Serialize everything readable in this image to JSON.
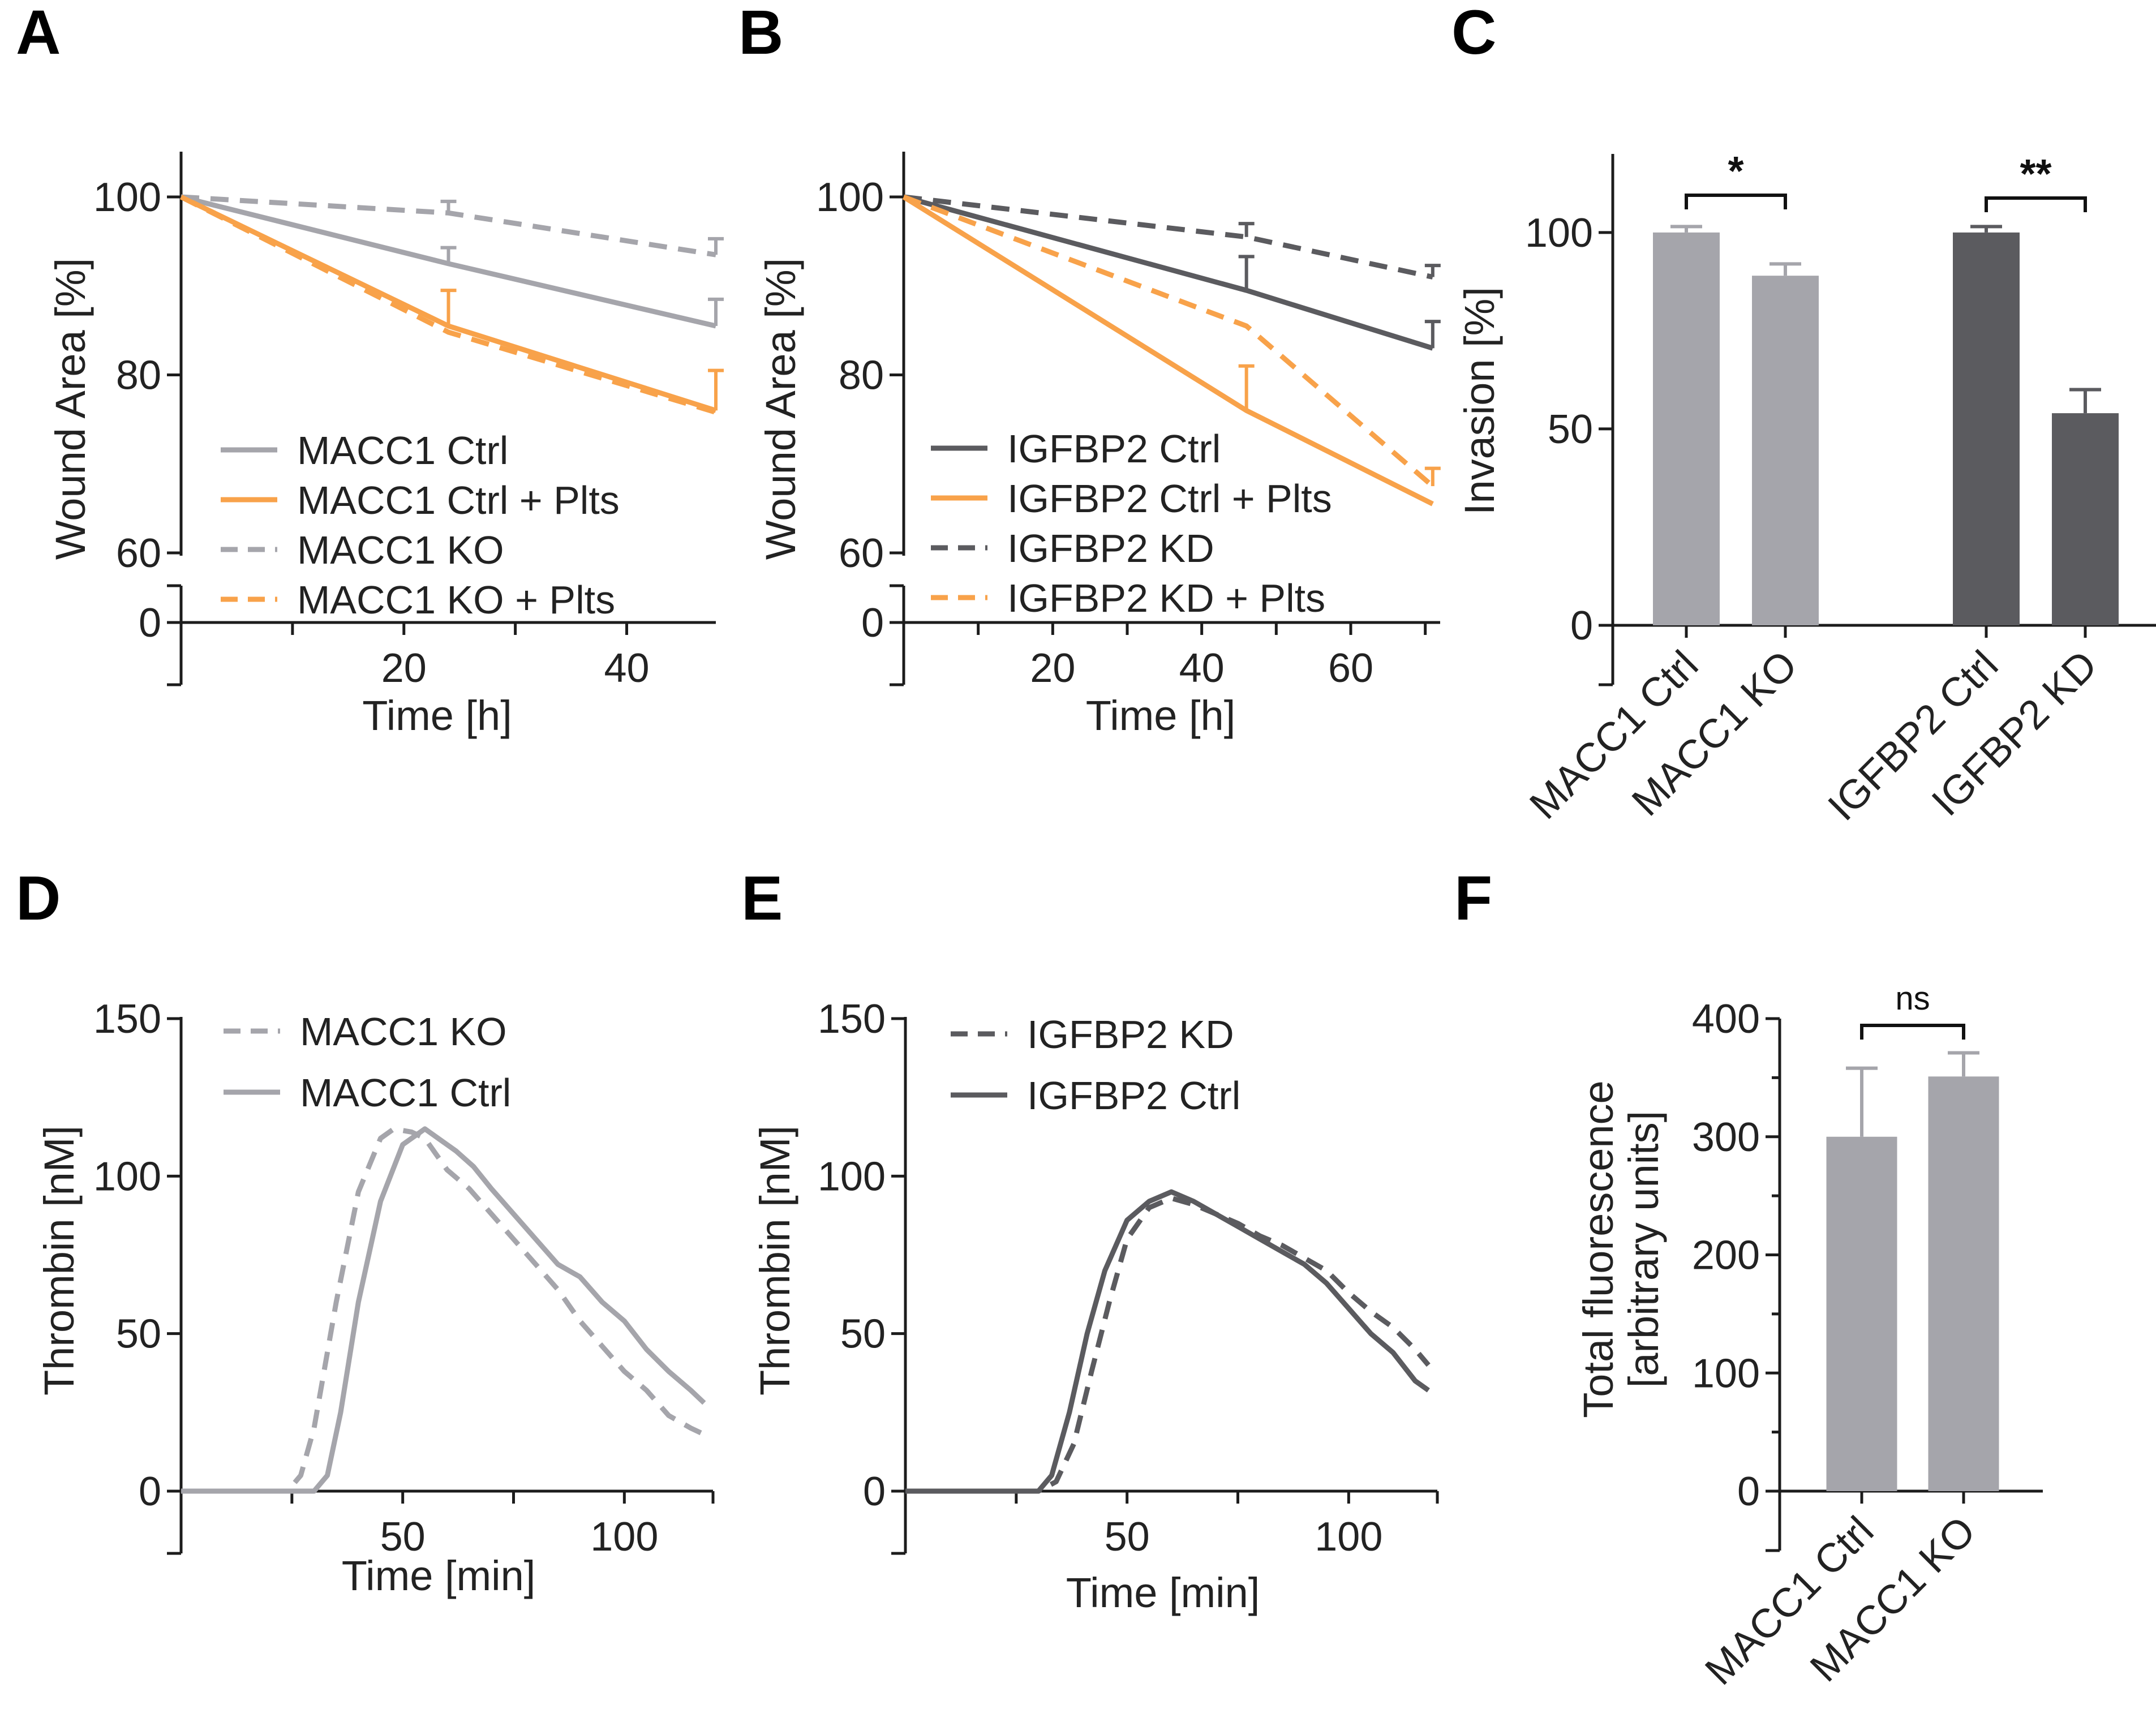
{
  "figure": {
    "colors": {
      "macc1": "#a5a5ab",
      "igfbp2": "#5b5b5f",
      "plts": "#f8a24a",
      "axis": "#1c1c1c"
    },
    "panel_letters": [
      "A",
      "B",
      "C",
      "D",
      "E",
      "F"
    ]
  },
  "chart_data": [
    {
      "panel": "A",
      "type": "line",
      "xlabel": "Time [h]",
      "ylabel": "Wound  Area [%]",
      "xlim": [
        0,
        48
      ],
      "ylim": [
        60,
        100
      ],
      "broken_axis_zero": true,
      "xticks": [
        20,
        40
      ],
      "yticks": [
        60,
        80,
        100
      ],
      "legend_position": "lower-left inside",
      "series": [
        {
          "name": "MACC1 Ctrl",
          "style": "solid",
          "color_key": "macc1",
          "x": [
            0,
            24,
            48
          ],
          "y": [
            100,
            92.5,
            85.5
          ],
          "err": [
            0,
            1.8,
            3
          ]
        },
        {
          "name": "MACC1 Ctrl + Plts",
          "style": "solid",
          "color_key": "plts",
          "x": [
            0,
            24,
            48
          ],
          "y": [
            100,
            85.5,
            76
          ],
          "err": [
            0,
            4,
            4.5
          ]
        },
        {
          "name": "MACC1 KO",
          "style": "dashed",
          "color_key": "macc1",
          "x": [
            0,
            24,
            48
          ],
          "y": [
            100,
            98.2,
            93.5
          ],
          "err": [
            0,
            1.3,
            1.8
          ]
        },
        {
          "name": "MACC1 KO + Plts",
          "style": "dashed",
          "color_key": "plts",
          "x": [
            0,
            24,
            48
          ],
          "y": [
            100,
            84.8,
            75.8
          ],
          "err": [
            0,
            0,
            0
          ]
        }
      ]
    },
    {
      "panel": "B",
      "type": "line",
      "xlabel": "Time [h]",
      "ylabel": "Wound  Area [%]",
      "xlim": [
        0,
        72
      ],
      "ylim": [
        60,
        100
      ],
      "broken_axis_zero": true,
      "xticks": [
        20,
        40,
        60
      ],
      "yticks": [
        60,
        80,
        100
      ],
      "legend_position": "lower-left inside",
      "series": [
        {
          "name": "IGFBP2 Ctrl",
          "style": "solid",
          "color_key": "igfbp2",
          "x": [
            0,
            46,
            71
          ],
          "y": [
            100,
            89.5,
            83
          ],
          "err": [
            0,
            3.8,
            3
          ]
        },
        {
          "name": "IGFBP2 Ctrl + Plts",
          "style": "solid",
          "color_key": "plts",
          "x": [
            0,
            46,
            71
          ],
          "y": [
            100,
            76,
            65.5
          ],
          "err": [
            0,
            5,
            0
          ]
        },
        {
          "name": "IGFBP2 KD",
          "style": "dashed",
          "color_key": "igfbp2",
          "x": [
            0,
            46,
            71
          ],
          "y": [
            100,
            95.5,
            91
          ],
          "err": [
            0,
            1.5,
            1.3
          ]
        },
        {
          "name": "IGFBP2 KD + Plts",
          "style": "dashed",
          "color_key": "plts",
          "x": [
            0,
            46,
            71
          ],
          "y": [
            100,
            85.5,
            67.5
          ],
          "err": [
            0,
            0,
            2
          ]
        }
      ]
    },
    {
      "panel": "C",
      "type": "bar",
      "ylabel": "Invasion [%]",
      "ylim": [
        0,
        120
      ],
      "yticks": [
        0,
        50,
        100
      ],
      "categories": [
        "MACC1 Ctrl",
        "MACC1 KO",
        "IGFBP2 Ctrl",
        "IGFBP2 KD"
      ],
      "values": [
        100,
        89,
        100,
        54
      ],
      "errors": [
        1.5,
        3,
        1.5,
        6
      ],
      "bar_color_keys": [
        "macc1",
        "macc1",
        "igfbp2",
        "igfbp2"
      ],
      "significance": [
        {
          "between": [
            0,
            1
          ],
          "label": "*"
        },
        {
          "between": [
            2,
            3
          ],
          "label": "**"
        }
      ]
    },
    {
      "panel": "D",
      "type": "line",
      "xlabel": "Time [min]",
      "ylabel": "Thrombin [nM]",
      "xlim": [
        0,
        120
      ],
      "ylim": [
        0,
        150
      ],
      "xticks": [
        50,
        100
      ],
      "yticks": [
        0,
        50,
        100,
        150
      ],
      "legend_position": "top-left",
      "series": [
        {
          "name": "MACC1 KO",
          "style": "dashed",
          "color_key": "macc1",
          "x": [
            0,
            20,
            24,
            27,
            30,
            35,
            40,
            45,
            48,
            52,
            55,
            60,
            65,
            70,
            75,
            80,
            85,
            90,
            95,
            100,
            105,
            110,
            115,
            118
          ],
          "y": [
            0,
            0,
            0,
            5,
            20,
            60,
            95,
            112,
            115,
            114,
            112,
            102,
            96,
            88,
            80,
            72,
            64,
            54,
            46,
            38,
            32,
            24,
            20,
            18
          ]
        },
        {
          "name": "MACC1 Ctrl",
          "style": "solid",
          "color_key": "macc1",
          "x": [
            0,
            25,
            30,
            33,
            36,
            40,
            45,
            50,
            55,
            58,
            62,
            66,
            70,
            75,
            80,
            85,
            90,
            95,
            100,
            105,
            110,
            115,
            118
          ],
          "y": [
            0,
            0,
            0,
            5,
            25,
            60,
            92,
            110,
            115,
            112,
            108,
            103,
            96,
            88,
            80,
            72,
            68,
            60,
            54,
            45,
            38,
            32,
            28
          ]
        }
      ]
    },
    {
      "panel": "E",
      "type": "line",
      "xlabel": "Time [min]",
      "ylabel": "Thrombin [nM]",
      "xlim": [
        0,
        120
      ],
      "ylim": [
        0,
        150
      ],
      "xticks": [
        50,
        100
      ],
      "yticks": [
        0,
        50,
        100,
        150
      ],
      "legend_position": "top-left",
      "series": [
        {
          "name": "IGFBP2 KD",
          "style": "dashed",
          "color_key": "igfbp2",
          "x": [
            0,
            30,
            34,
            38,
            42,
            46,
            50,
            55,
            60,
            65,
            70,
            75,
            80,
            85,
            90,
            95,
            100,
            105,
            110,
            115,
            118
          ],
          "y": [
            0,
            0,
            3,
            15,
            38,
            60,
            80,
            90,
            93,
            91,
            88,
            85,
            81,
            78,
            74,
            70,
            63,
            57,
            52,
            45,
            40
          ]
        },
        {
          "name": "IGFBP2 Ctrl",
          "style": "solid",
          "color_key": "igfbp2",
          "x": [
            0,
            30,
            33,
            37,
            41,
            45,
            50,
            55,
            60,
            65,
            70,
            75,
            80,
            85,
            90,
            95,
            100,
            105,
            110,
            115,
            118
          ],
          "y": [
            0,
            0,
            5,
            25,
            50,
            70,
            86,
            92,
            95,
            92,
            88,
            84,
            80,
            76,
            72,
            66,
            58,
            50,
            44,
            35,
            32
          ]
        }
      ]
    },
    {
      "panel": "F",
      "type": "bar",
      "ylabel": "Total fluorescence\n[arbitrary units]",
      "ylabel_lines": [
        "Total fluorescence",
        "[arbitrary units]"
      ],
      "ylim": [
        0,
        400
      ],
      "yticks": [
        0,
        100,
        200,
        300,
        400
      ],
      "categories": [
        "MACC1 Ctrl",
        "MACC1 KO"
      ],
      "values": [
        300,
        351
      ],
      "errors": [
        58,
        20
      ],
      "bar_color_keys": [
        "macc1",
        "macc1"
      ],
      "significance": [
        {
          "between": [
            0,
            1
          ],
          "label": "ns"
        }
      ]
    }
  ]
}
